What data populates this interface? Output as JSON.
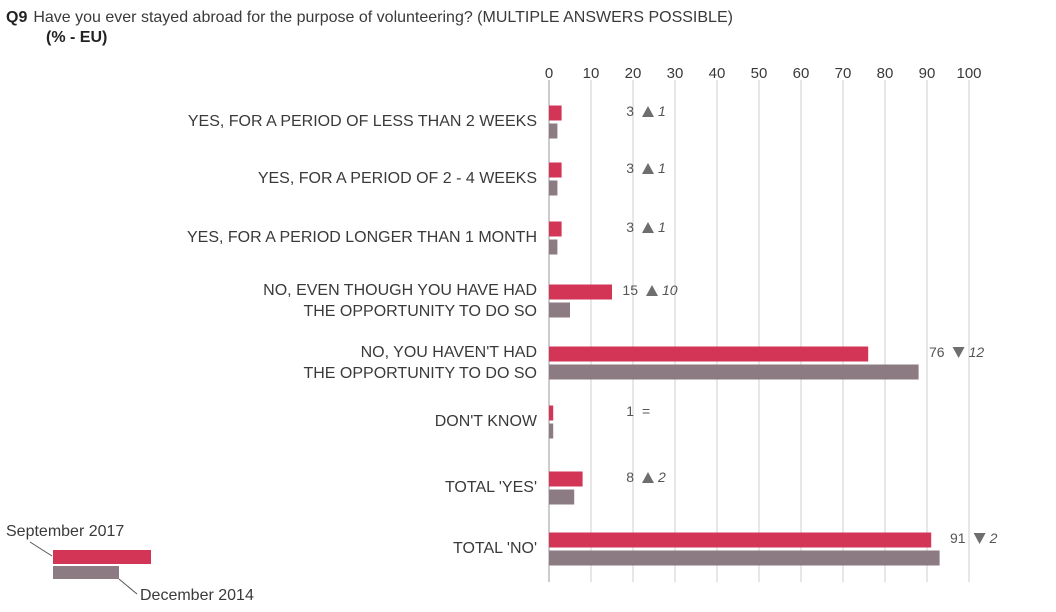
{
  "header": {
    "question_number": "Q9",
    "question_text": "Have you ever stayed abroad for the purpose of volunteering? (MULTIPLE ANSWERS POSSIBLE)",
    "subtitle": "(% - EU)"
  },
  "legend": {
    "current_label": "September 2017",
    "previous_label": "December 2014"
  },
  "colors": {
    "current": "#d23556",
    "previous": "#8c7b82",
    "grid": "#cfcfcf",
    "text": "#3a3a3a",
    "annotation": "#555555",
    "change_arrow": "#6e6e6e"
  },
  "chart_data": {
    "type": "bar",
    "orientation": "horizontal",
    "categories": [
      [
        "YES, FOR A PERIOD OF LESS THAN 2 WEEKS"
      ],
      [
        "YES, FOR A PERIOD OF 2 - 4 WEEKS"
      ],
      [
        "YES, FOR A PERIOD LONGER THAN 1 MONTH"
      ],
      [
        "NO, EVEN THOUGH YOU HAVE HAD",
        "THE OPPORTUNITY TO DO SO"
      ],
      [
        "NO, YOU HAVEN'T HAD",
        "THE OPPORTUNITY TO DO SO"
      ],
      [
        "DON'T KNOW"
      ],
      [
        "TOTAL 'YES'"
      ],
      [
        "TOTAL 'NO'"
      ]
    ],
    "series": [
      {
        "name": "September 2017",
        "values": [
          3,
          3,
          3,
          15,
          76,
          1,
          8,
          91
        ]
      },
      {
        "name": "December 2014",
        "values": [
          2,
          2,
          2,
          5,
          88,
          1,
          6,
          93
        ]
      }
    ],
    "value_labels": [
      "3",
      "3",
      "3",
      "15",
      "76",
      "1",
      "8",
      "91"
    ],
    "changes": [
      {
        "direction": "up",
        "value": "1"
      },
      {
        "direction": "up",
        "value": "1"
      },
      {
        "direction": "up",
        "value": "1"
      },
      {
        "direction": "up",
        "value": "10"
      },
      {
        "direction": "down",
        "value": "12"
      },
      {
        "direction": "equal",
        "value": "="
      },
      {
        "direction": "up",
        "value": "2"
      },
      {
        "direction": "down",
        "value": "2"
      }
    ],
    "x_ticks": [
      0,
      10,
      20,
      30,
      40,
      50,
      60,
      70,
      80,
      90,
      100
    ],
    "xlim": [
      0,
      100
    ],
    "grid": true,
    "axis_position": "top",
    "legend_position": "bottom-left"
  }
}
